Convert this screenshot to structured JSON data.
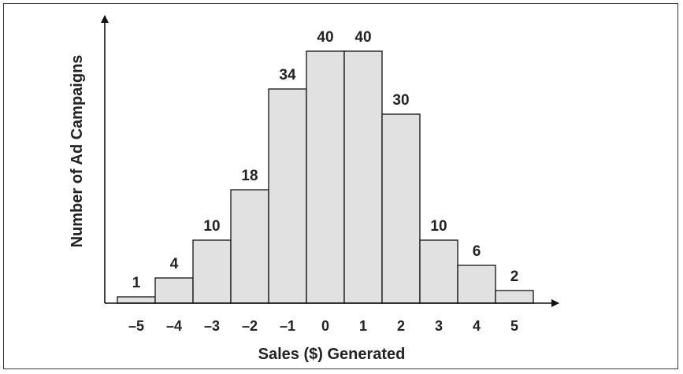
{
  "chart_data": {
    "type": "bar",
    "title": "",
    "xlabel": "Sales ($) Generated",
    "ylabel": "Number of Ad Campaigns",
    "categories": [
      "–5",
      "–4",
      "–3",
      "–2",
      "–1",
      "0",
      "1",
      "2",
      "3",
      "4",
      "5"
    ],
    "values": [
      1,
      4,
      10,
      18,
      34,
      40,
      40,
      30,
      10,
      6,
      2
    ],
    "ylim": [
      0,
      40
    ],
    "grid": false,
    "legend": "none",
    "bar_color": "#e1e1e1",
    "edge_color": "#222222"
  }
}
